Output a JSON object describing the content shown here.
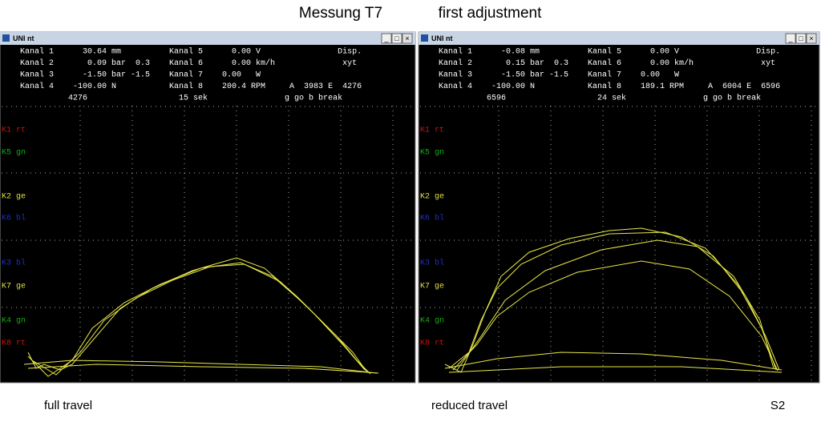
{
  "header": {
    "title": "Messung T7",
    "subtitle": "first adjustment"
  },
  "windows": [
    {
      "title": "UNI nt",
      "readout": [
        "Kanal 1      30.64 mm          Kanal 5      0.00 V                Disp.",
        "Kanal 2       0.09 bar  0.3    Kanal 6      0.00 km/h              xyt",
        "Kanal 3      -1.50 bar -1.5    Kanal 7    0.00   W",
        "Kanal 4    -100.00 N           Kanal 8    200.4 RPM     A  3983 E  4276",
        "          4276                   15 sek                g go b break"
      ],
      "labels": [
        {
          "text": "K1 rt",
          "color": "#d01010"
        },
        {
          "text": "K5 gn",
          "color": "#10b010"
        },
        {
          "text": "K2 ge",
          "color": "#e0e040"
        },
        {
          "text": "K6 bl",
          "color": "#2030c0"
        },
        {
          "text": "K3 bl",
          "color": "#2030c0"
        },
        {
          "text": "K7 ge",
          "color": "#e0e040"
        },
        {
          "text": "K4 gn",
          "color": "#10b010"
        },
        {
          "text": "K8 rt",
          "color": "#d01010"
        }
      ],
      "caption": "full travel"
    },
    {
      "title": "UNI nt",
      "readout": [
        "Kanal 1      -0.08 mm          Kanal 5      0.00 V                Disp.",
        "Kanal 2       0.15 bar  0.3    Kanal 6      0.00 km/h              xyt",
        "Kanal 3      -1.50 bar -1.5    Kanal 7    0.00   W",
        "Kanal 4    -100.00 N           Kanal 8    189.1 RPM     A  6004 E  6596",
        "          6596                   24 sek                g go b break"
      ],
      "labels": [
        {
          "text": "K1 rt",
          "color": "#d01010"
        },
        {
          "text": "K5 gn",
          "color": "#10b010"
        },
        {
          "text": "K2 ge",
          "color": "#e0e040"
        },
        {
          "text": "K6 bl",
          "color": "#2030c0"
        },
        {
          "text": "K3 bl",
          "color": "#2030c0"
        },
        {
          "text": "K7 ge",
          "color": "#e0e040"
        },
        {
          "text": "K4 gn",
          "color": "#10b010"
        },
        {
          "text": "K8 rt",
          "color": "#d01010"
        }
      ],
      "caption": "reduced travel"
    }
  ],
  "footer": {
    "tag": "S2"
  }
}
